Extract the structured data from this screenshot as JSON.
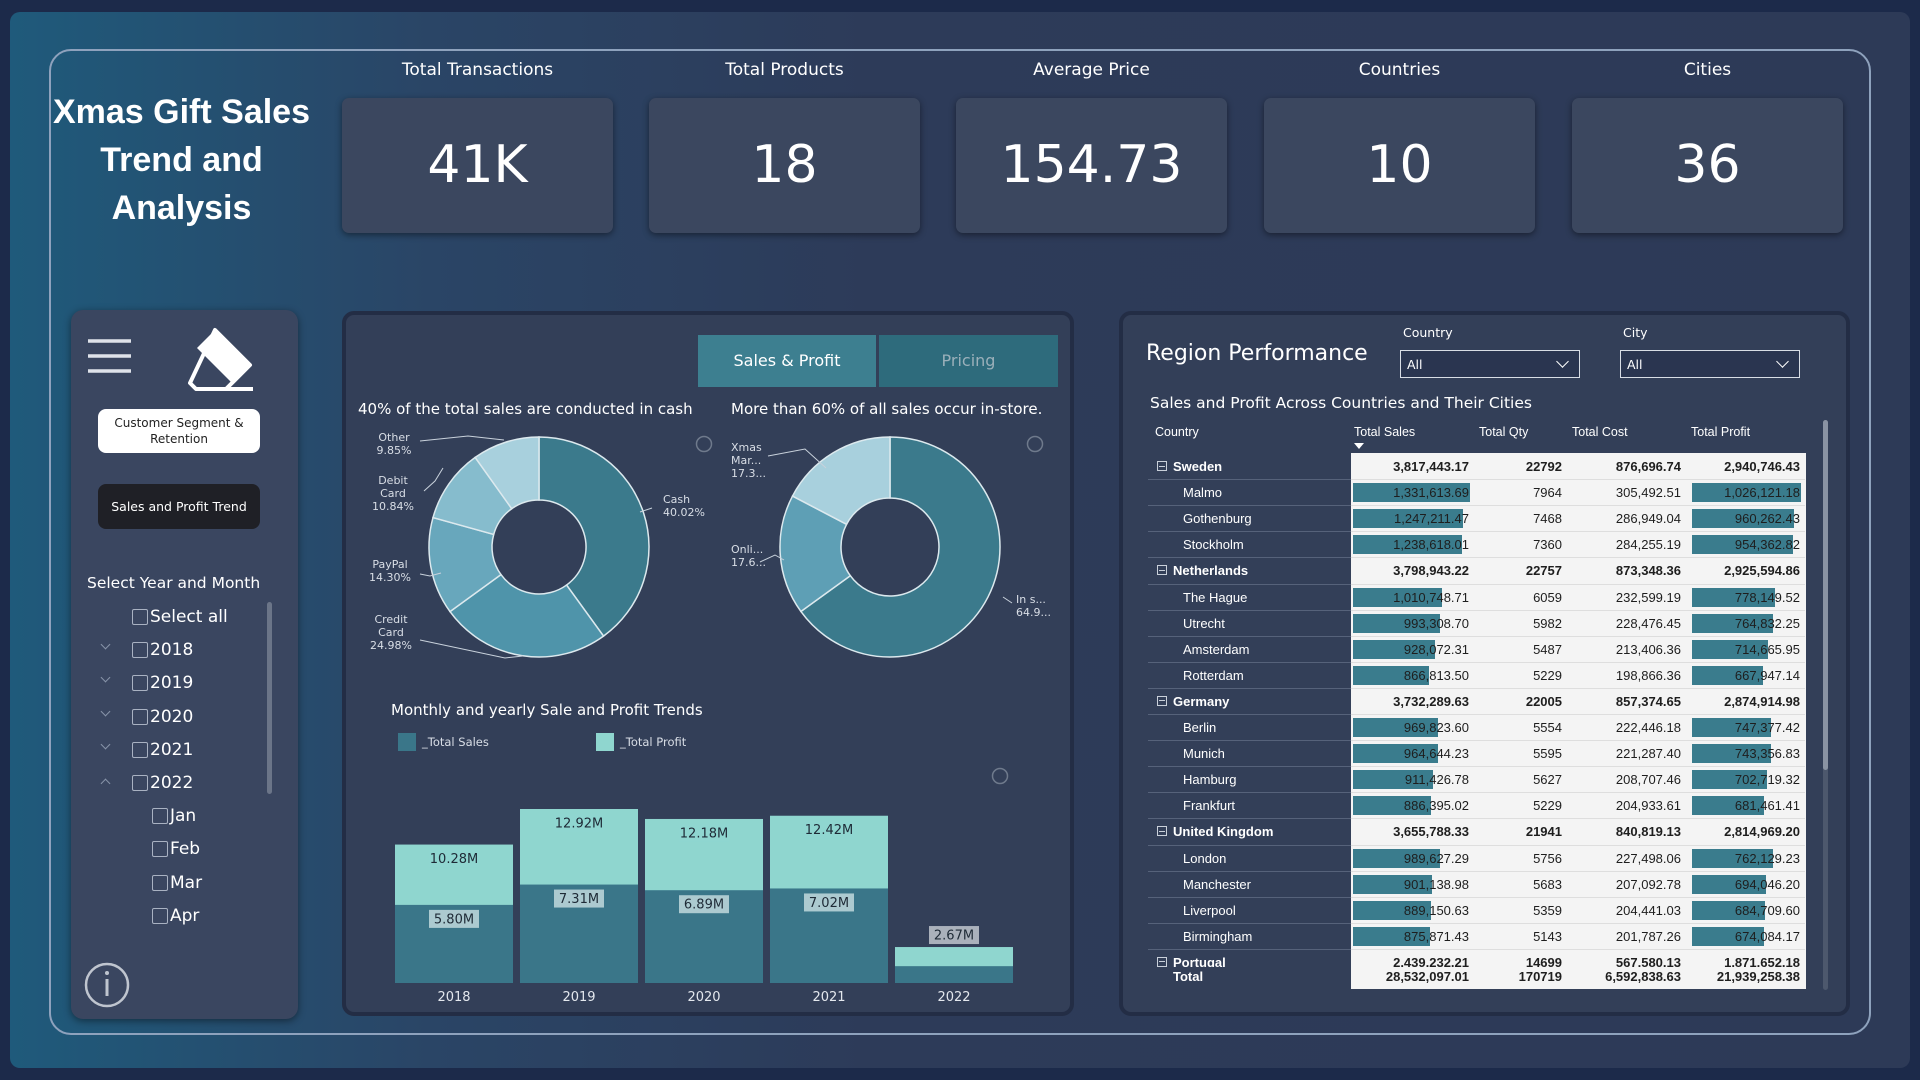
{
  "header": {
    "title": "Xmas Gift Sales Trend and Analysis"
  },
  "kpis": [
    {
      "label": "Total Transactions",
      "value": "41K"
    },
    {
      "label": "Total Products",
      "value": 18
    },
    {
      "label": "Average Price",
      "value": 154.73
    },
    {
      "label": "Countries",
      "value": 10
    },
    {
      "label": "Cities",
      "value": 36
    }
  ],
  "sidebar": {
    "buttons": [
      "Customer Segment & Retention",
      "Sales and Profit Trend"
    ],
    "slicer": {
      "title": "Select Year and Month",
      "select_all": "Select all",
      "years": [
        {
          "label": "2018"
        },
        {
          "label": "2019"
        },
        {
          "label": "2020"
        },
        {
          "label": "2021"
        },
        {
          "label": "2022",
          "months": [
            "Jan",
            "Feb",
            "Mar",
            "Apr"
          ]
        }
      ]
    }
  },
  "tabs": [
    "Sales & Profit",
    "Pricing"
  ],
  "payment_chart": {
    "type": "pie",
    "title": "40% of the total sales are conducted in cash",
    "slices": [
      {
        "name": "Cash",
        "value": 40.02,
        "label": "40.02%",
        "color": "#3b7a8c"
      },
      {
        "name": "Credit Card",
        "value": 24.98,
        "label": "24.98%",
        "color": "#4f94aa"
      },
      {
        "name": "PayPal",
        "value": 14.3,
        "label": "14.30%",
        "color": "#68a7bc"
      },
      {
        "name": "Debit Card",
        "value": 10.84,
        "label": "10.84%",
        "color": "#86bccd"
      },
      {
        "name": "Other",
        "value": 9.85,
        "label": "9.85%",
        "color": "#a8d0dd"
      }
    ]
  },
  "channel_chart": {
    "type": "pie",
    "title": "More than 60% of all sales occur in-store.",
    "slices": [
      {
        "name": "In s...",
        "value": 64.9,
        "label": "64.9...",
        "color": "#3b7a8c"
      },
      {
        "name": "Onli...",
        "value": 17.6,
        "label": "17.6...",
        "color": "#5e9fb5"
      },
      {
        "name": "Xmas Mar...",
        "value": 17.3,
        "label": "17.3...",
        "color": "#a8d0dd"
      }
    ]
  },
  "trend_chart": {
    "type": "bar",
    "title": "Monthly and yearly Sale and Profit Trends",
    "categories": [
      "2018",
      "2019",
      "2020",
      "2021",
      "2022"
    ],
    "series": [
      {
        "name": "_Total Sales",
        "color": "#3a7689",
        "values": [
          5.8,
          7.31,
          6.89,
          7.02,
          1.25
        ],
        "value_labels": [
          "5.80M",
          "7.31M",
          "6.89M",
          "7.02M",
          null
        ]
      },
      {
        "name": "_Total Profit",
        "color": "#8fd6cf",
        "values": [
          10.28,
          12.92,
          12.18,
          12.42,
          2.67
        ],
        "value_labels": [
          "10.28M",
          "12.92M",
          "12.18M",
          "12.42M",
          "2.67M"
        ]
      }
    ]
  },
  "region": {
    "title": "Region Performance",
    "filters": [
      {
        "label": "Country",
        "value": "All"
      },
      {
        "label": "City",
        "value": "All"
      }
    ],
    "table": {
      "title": "Sales and Profit Across Countries and Their Cities",
      "columns": [
        "Country",
        "Total Sales",
        "Total Qty",
        "Total Cost",
        "Total Profit"
      ],
      "groups": [
        {
          "cells": [
            "Sweden",
            "3,817,443.17",
            22792,
            "876,696.74",
            "2,940,746.43"
          ],
          "cities": [
            {
              "cells": [
                "Malmo",
                {
                  "value": 1331613.69,
                  "label": "1,331,613.69"
                },
                7964,
                "305,492.51",
                {
                  "value": 1026121.18,
                  "label": "1,026,121.18"
                }
              ]
            },
            {
              "cells": [
                "Gothenburg",
                {
                  "value": 1247211.47,
                  "label": "1,247,211.47"
                },
                7468,
                "286,949.04",
                {
                  "value": 960262.43,
                  "label": "960,262.43"
                }
              ]
            },
            {
              "cells": [
                "Stockholm",
                {
                  "value": 1238618.01,
                  "label": "1,238,618.01"
                },
                7360,
                "284,255.19",
                {
                  "value": 954362.82,
                  "label": "954,362.82"
                }
              ]
            }
          ]
        },
        {
          "cells": [
            "Netherlands",
            "3,798,943.22",
            22757,
            "873,348.36",
            "2,925,594.86"
          ],
          "cities": [
            {
              "cells": [
                "The Hague",
                {
                  "value": 1010748.71,
                  "label": "1,010,748.71"
                },
                6059,
                "232,599.19",
                {
                  "value": 778149.52,
                  "label": "778,149.52"
                }
              ]
            },
            {
              "cells": [
                "Utrecht",
                {
                  "value": 993308.7,
                  "label": "993,308.70"
                },
                5982,
                "228,476.45",
                {
                  "value": 764832.25,
                  "label": "764,832.25"
                }
              ]
            },
            {
              "cells": [
                "Amsterdam",
                {
                  "value": 928072.31,
                  "label": "928,072.31"
                },
                5487,
                "213,406.36",
                {
                  "value": 714665.95,
                  "label": "714,665.95"
                }
              ]
            },
            {
              "cells": [
                "Rotterdam",
                {
                  "value": 866813.5,
                  "label": "866,813.50"
                },
                5229,
                "198,866.36",
                {
                  "value": 667947.14,
                  "label": "667,947.14"
                }
              ]
            }
          ]
        },
        {
          "cells": [
            "Germany",
            "3,732,289.63",
            22005,
            "857,374.65",
            "2,874,914.98"
          ],
          "cities": [
            {
              "cells": [
                "Berlin",
                {
                  "value": 969823.6,
                  "label": "969,823.60"
                },
                5554,
                "222,446.18",
                {
                  "value": 747377.42,
                  "label": "747,377.42"
                }
              ]
            },
            {
              "cells": [
                "Munich",
                {
                  "value": 964644.23,
                  "label": "964,644.23"
                },
                5595,
                "221,287.40",
                {
                  "value": 743356.83,
                  "label": "743,356.83"
                }
              ]
            },
            {
              "cells": [
                "Hamburg",
                {
                  "value": 911426.78,
                  "label": "911,426.78"
                },
                5627,
                "208,707.46",
                {
                  "value": 702719.32,
                  "label": "702,719.32"
                }
              ]
            },
            {
              "cells": [
                "Frankfurt",
                {
                  "value": 886395.02,
                  "label": "886,395.02"
                },
                5229,
                "204,933.61",
                {
                  "value": 681461.41,
                  "label": "681,461.41"
                }
              ]
            }
          ]
        },
        {
          "cells": [
            "United Kingdom",
            "3,655,788.33",
            21941,
            "840,819.13",
            "2,814,969.20"
          ],
          "cities": [
            {
              "cells": [
                "London",
                {
                  "value": 989627.29,
                  "label": "989,627.29"
                },
                5756,
                "227,498.06",
                {
                  "value": 762129.23,
                  "label": "762,129.23"
                }
              ]
            },
            {
              "cells": [
                "Manchester",
                {
                  "value": 901138.98,
                  "label": "901,138.98"
                },
                5683,
                "207,092.78",
                {
                  "value": 694046.2,
                  "label": "694,046.20"
                }
              ]
            },
            {
              "cells": [
                "Liverpool",
                {
                  "value": 889150.63,
                  "label": "889,150.63"
                },
                5359,
                "204,441.03",
                {
                  "value": 684709.6,
                  "label": "684,709.60"
                }
              ]
            },
            {
              "cells": [
                "Birmingham",
                {
                  "value": 875871.43,
                  "label": "875,871.43"
                },
                5143,
                "201,787.26",
                {
                  "value": 674084.17,
                  "label": "674,084.17"
                }
              ]
            }
          ]
        },
        {
          "cells": [
            "Portugal",
            "2,439,232.21",
            14699,
            "567,580.13",
            "1,871,652.18"
          ],
          "cities": []
        }
      ],
      "total": [
        "Total",
        "28,532,097.01",
        170719,
        "6,592,838.63",
        "21,939,258.38"
      ]
    }
  }
}
